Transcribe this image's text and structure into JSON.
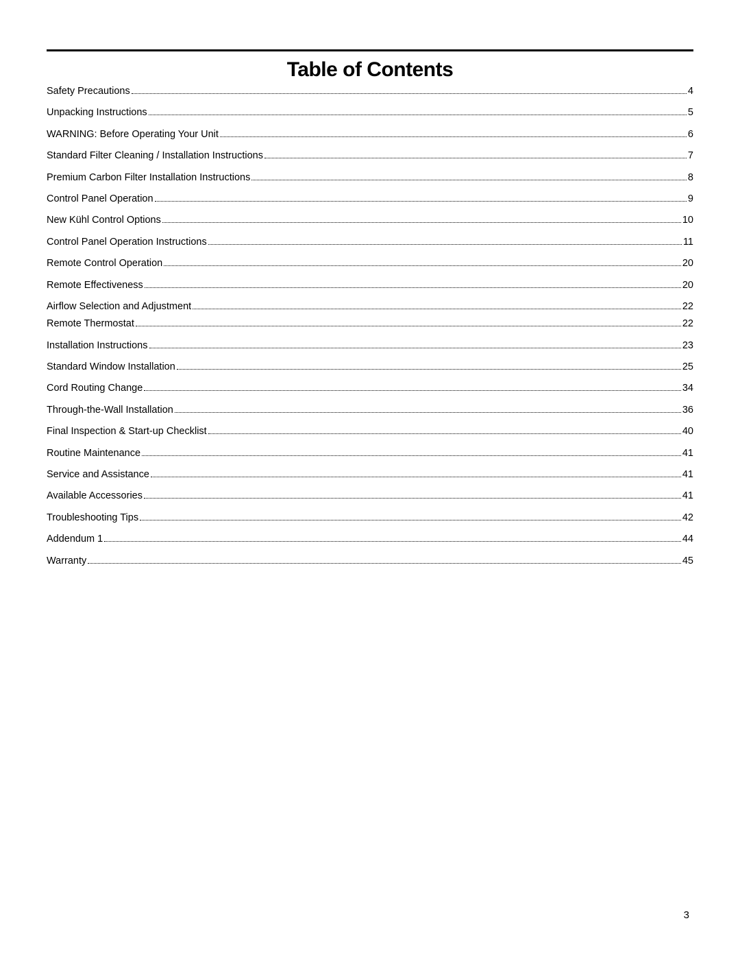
{
  "title": "Table of Contents",
  "page_number": "3",
  "toc": [
    {
      "label": "Safety Precautions",
      "page": "4"
    },
    {
      "label": "Unpacking Instructions",
      "page": "5"
    },
    {
      "label": "WARNING: Before Operating Your Unit",
      "page": "6"
    },
    {
      "label": "Standard Filter Cleaning / Installation Instructions",
      "page": "7"
    },
    {
      "label": "Premium Carbon Filter Installation Instructions",
      "page": "8"
    },
    {
      "label": "Control Panel Operation",
      "page": " 9"
    },
    {
      "label": "New Kühl Control Options",
      "page": "10"
    },
    {
      "label": "Control Panel Operation Instructions",
      "page": "11"
    },
    {
      "label": "Remote Control Operation",
      "page": "20"
    },
    {
      "label": "Remote Effectiveness",
      "page": "20"
    },
    {
      "label": "Airflow Selection and Adjustment",
      "page": "22",
      "tight": true
    },
    {
      "label": "Remote Thermostat",
      "page": "22"
    },
    {
      "label": "Installation Instructions",
      "page": "23"
    },
    {
      "label": "Standard Window Installation",
      "page": "25"
    },
    {
      "label": "Cord Routing Change",
      "page": "34"
    },
    {
      "label": "Through-the-Wall Installation",
      "page": "36"
    },
    {
      "label": "Final Inspection & Start-up Checklist",
      "page": "40"
    },
    {
      "label": "Routine Maintenance",
      "page": "41"
    },
    {
      "label": "Service and Assistance",
      "page": "41"
    },
    {
      "label": "Available Accessories",
      "page": "41"
    },
    {
      "label": "Troubleshooting Tips",
      "page": "42"
    },
    {
      "label": "Addendum 1",
      "page": "44"
    },
    {
      "label": "Warranty ",
      "page": " 45"
    }
  ]
}
